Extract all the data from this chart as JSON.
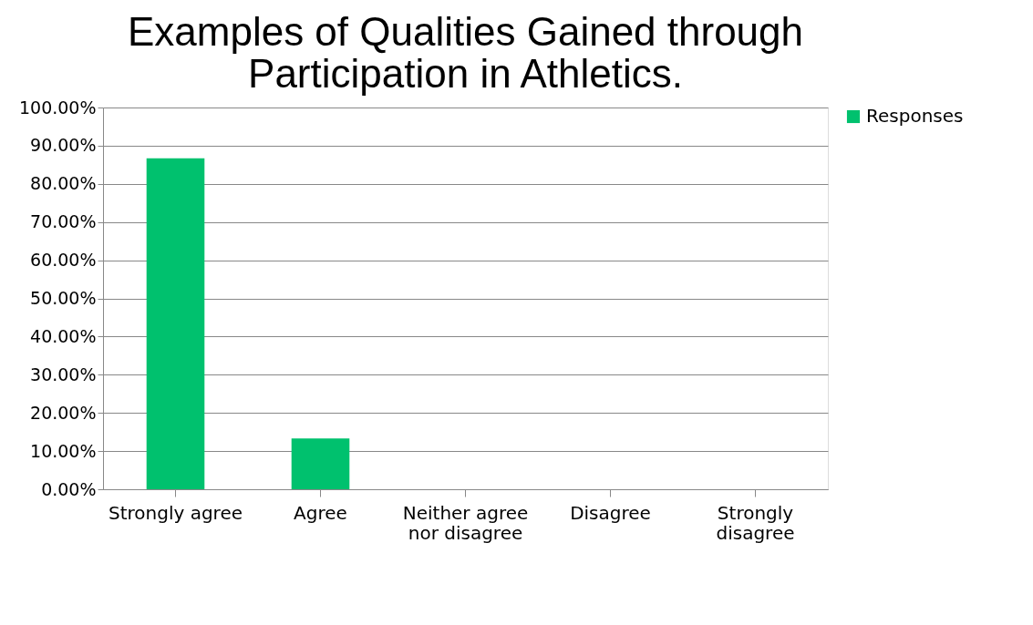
{
  "chart_data": {
    "type": "bar",
    "title": "Examples of Qualities Gained through Participation in Athletics.",
    "categories": [
      "Strongly agree",
      "Agree",
      "Neither agree nor disagree",
      "Disagree",
      "Strongly disagree"
    ],
    "series": [
      {
        "name": "Responses",
        "color": "#00c16e",
        "values": [
          86.7,
          13.3,
          0,
          0,
          0
        ]
      }
    ],
    "ylim": [
      0,
      100
    ],
    "yticks": [
      {
        "value": 0,
        "label": "0.00%"
      },
      {
        "value": 10,
        "label": "10.00%"
      },
      {
        "value": 20,
        "label": "20.00%"
      },
      {
        "value": 30,
        "label": "30.00%"
      },
      {
        "value": 40,
        "label": "40.00%"
      },
      {
        "value": 50,
        "label": "50.00%"
      },
      {
        "value": 60,
        "label": "60.00%"
      },
      {
        "value": 70,
        "label": "70.00%"
      },
      {
        "value": 80,
        "label": "80.00%"
      },
      {
        "value": 90,
        "label": "90.00%"
      },
      {
        "value": 100,
        "label": "100.00%"
      }
    ],
    "grid": "y",
    "legend": "right"
  }
}
